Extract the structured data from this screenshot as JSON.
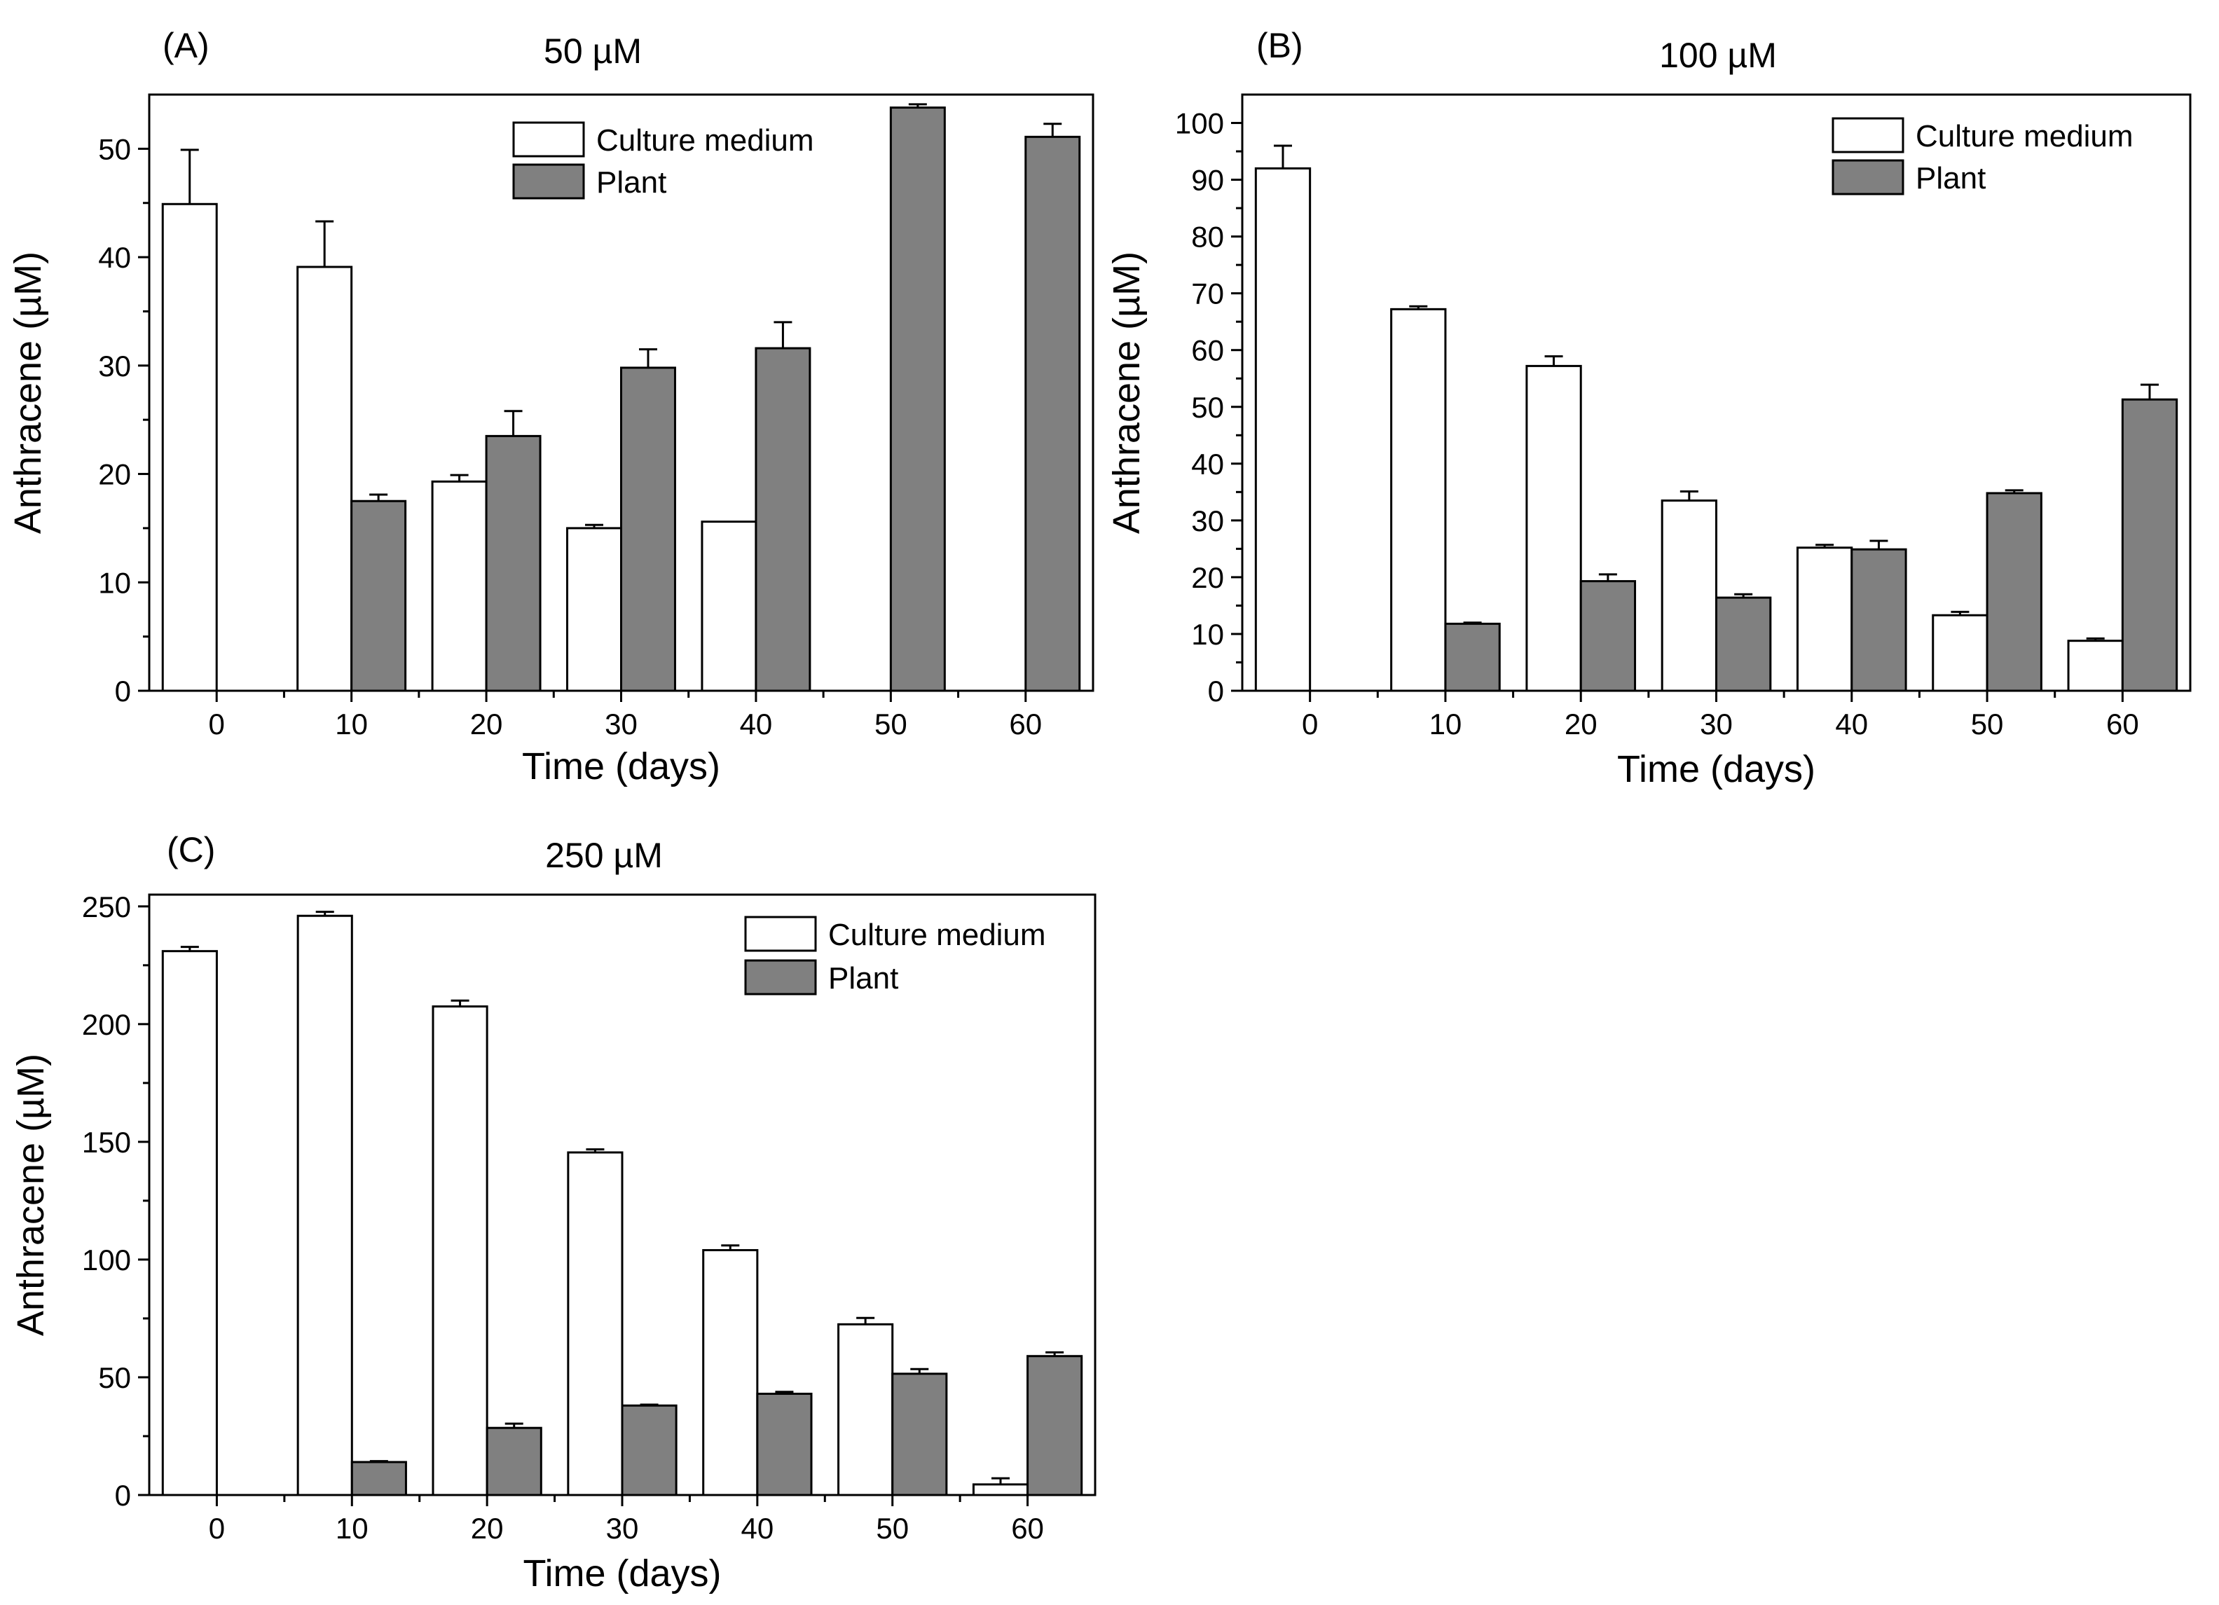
{
  "colors": {
    "culture_medium_fill": "#ffffff",
    "plant_fill": "#808080",
    "axis": "#000000"
  },
  "chart_data": [
    {
      "type": "bar",
      "panel": "(A)",
      "title": "50 µM",
      "xlabel": "Time (days)",
      "ylabel": "Anthracene (µM)",
      "categories": [
        "0",
        "10",
        "20",
        "30",
        "40",
        "50",
        "60"
      ],
      "ylim": [
        0,
        55
      ],
      "yticks": [
        0,
        10,
        20,
        30,
        40,
        50
      ],
      "legend_position": "top-right",
      "series": [
        {
          "name": "Culture medium",
          "color": "#ffffff",
          "values": [
            44.9,
            39.1,
            19.3,
            15.0,
            15.6,
            null,
            null
          ],
          "errors": [
            5.0,
            4.2,
            0.6,
            0.3,
            0.0,
            null,
            null
          ]
        },
        {
          "name": "Plant",
          "color": "#808080",
          "values": [
            null,
            17.5,
            23.5,
            29.8,
            31.6,
            53.8,
            51.1
          ],
          "errors": [
            null,
            0.6,
            2.3,
            1.7,
            2.4,
            0.3,
            1.2
          ]
        }
      ]
    },
    {
      "type": "bar",
      "panel": "(B)",
      "title": "100 µM",
      "xlabel": "Time (days)",
      "ylabel": "Anthracene (µM)",
      "categories": [
        "0",
        "10",
        "20",
        "30",
        "40",
        "50",
        "60"
      ],
      "ylim": [
        0,
        105
      ],
      "yticks": [
        0,
        10,
        20,
        30,
        40,
        50,
        60,
        70,
        80,
        90,
        100
      ],
      "legend_position": "top-right",
      "series": [
        {
          "name": "Culture medium",
          "color": "#ffffff",
          "values": [
            92.0,
            67.2,
            57.2,
            33.5,
            25.2,
            13.3,
            8.8
          ],
          "errors": [
            4.0,
            0.5,
            1.7,
            1.6,
            0.5,
            0.6,
            0.4
          ]
        },
        {
          "name": "Plant",
          "color": "#808080",
          "values": [
            null,
            11.8,
            19.3,
            16.4,
            24.9,
            34.8,
            51.3
          ],
          "errors": [
            null,
            0.2,
            1.2,
            0.6,
            1.5,
            0.5,
            2.6
          ]
        }
      ]
    },
    {
      "type": "bar",
      "panel": "(C)",
      "title": "250 µM",
      "xlabel": "Time (days)",
      "ylabel": "Anthracene (µM)",
      "categories": [
        "0",
        "10",
        "20",
        "30",
        "40",
        "50",
        "60"
      ],
      "ylim": [
        0,
        255
      ],
      "yticks": [
        0,
        50,
        100,
        150,
        200,
        250
      ],
      "legend_position": "top-right",
      "series": [
        {
          "name": "Culture medium",
          "color": "#ffffff",
          "values": [
            231.0,
            246.0,
            207.5,
            145.5,
            104.0,
            72.5,
            4.5
          ],
          "errors": [
            1.8,
            1.7,
            2.5,
            1.3,
            2.0,
            2.7,
            2.6
          ]
        },
        {
          "name": "Plant",
          "color": "#808080",
          "values": [
            null,
            14.0,
            28.5,
            38.0,
            43.0,
            51.5,
            59.0
          ],
          "errors": [
            null,
            0.4,
            1.8,
            0.4,
            0.8,
            2.0,
            1.6
          ]
        }
      ]
    }
  ]
}
